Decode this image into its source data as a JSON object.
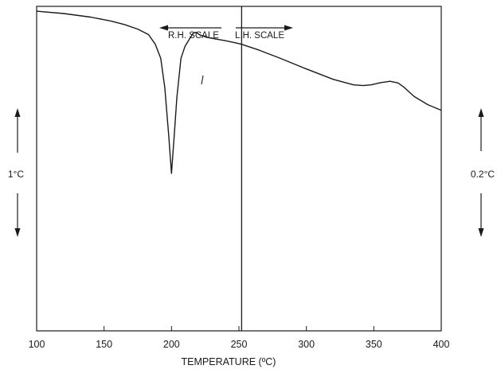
{
  "chart_data": {
    "type": "line",
    "xlabel": "TEMPERATURE (ºC)",
    "xlim": [
      100,
      400
    ],
    "x_ticks": [
      100,
      150,
      200,
      250,
      300,
      350,
      400
    ],
    "left_scale_label": "1°C",
    "right_scale_label": "0.2°C",
    "rh_scale_label": "R.H. SCALE",
    "lh_scale_label": "L.H. SCALE",
    "scale_change_x": 252,
    "grid": false,
    "series": [
      {
        "x": [
          100,
          120,
          140,
          155,
          165,
          175,
          183,
          188,
          192,
          195,
          198,
          200,
          202,
          204,
          207,
          210,
          213,
          216,
          218,
          221,
          226,
          232,
          240,
          248,
          252
        ],
        "y": [
          98.5,
          97.8,
          96.7,
          95.5,
          94.4,
          93.0,
          91.3,
          88.3,
          84.0,
          75.0,
          60.0,
          48.5,
          60.0,
          72.0,
          84.0,
          87.7,
          89.7,
          91.7,
          92.0,
          91.2,
          90.5,
          90.0,
          89.4,
          88.7,
          88.3
        ]
      },
      {
        "x": [
          252,
          265,
          280,
          300,
          320,
          335,
          342,
          348,
          355,
          362,
          368,
          372,
          380,
          390,
          400
        ],
        "y": [
          88.3,
          86.5,
          84.1,
          80.7,
          77.5,
          75.8,
          75.6,
          75.8,
          76.5,
          76.9,
          76.4,
          75.2,
          72.2,
          69.7,
          68.0
        ]
      }
    ]
  }
}
